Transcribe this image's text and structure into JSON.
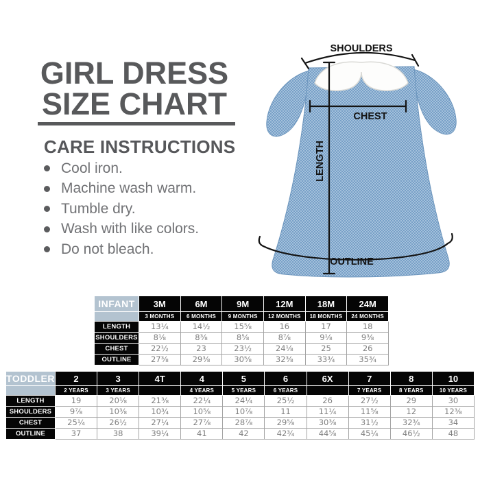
{
  "title": {
    "line1": "GIRL DRESS",
    "line2": "SIZE CHART"
  },
  "care": {
    "heading": "CARE INSTRUCTIONS",
    "items": [
      "Cool iron.",
      "Machine wash warm.",
      "Tumble dry.",
      "Wash with like colors.",
      "Do not bleach."
    ]
  },
  "diagram": {
    "shoulders_label": "SHOULDERS",
    "chest_label": "CHEST",
    "length_label": "LENGTH",
    "outline_label": "OUTLINE"
  },
  "colors": {
    "title_gray": "#58595b",
    "body_text_gray": "#717275",
    "table_header_bg": "#050505",
    "group_label_bg": "#b3c3d0",
    "value_text": "#7f7f7f",
    "dress_blue": "#7fa6cd"
  },
  "tables": {
    "infant": {
      "label": "INFANT",
      "columns": [
        {
          "size": "3M",
          "sub": "3 MONTHS"
        },
        {
          "size": "6M",
          "sub": "6 MONTHS"
        },
        {
          "size": "9M",
          "sub": "9 MONTHS"
        },
        {
          "size": "12M",
          "sub": "12 MONTHS"
        },
        {
          "size": "18M",
          "sub": "18 MONTHS"
        },
        {
          "size": "24M",
          "sub": "24 MONTHS"
        }
      ],
      "rows": [
        {
          "label": "LENGTH",
          "values": [
            "13¼",
            "14½",
            "15⅝",
            "16",
            "17",
            "18"
          ]
        },
        {
          "label": "SHOULDERS",
          "values": [
            "8⅛",
            "8⅜",
            "8⅝",
            "8⅞",
            "9⅛",
            "9⅜"
          ]
        },
        {
          "label": "CHEST",
          "values": [
            "22½",
            "23",
            "23½",
            "24⅛",
            "25",
            "26"
          ]
        },
        {
          "label": "OUTLINE",
          "values": [
            "27⅜",
            "29⅜",
            "30⅝",
            "32⅜",
            "33¾",
            "35¾"
          ]
        }
      ]
    },
    "toddler": {
      "label": "TODDLER",
      "columns": [
        {
          "size": "2",
          "sub": "2 YEARS"
        },
        {
          "size": "3",
          "sub": "3 YEARS"
        },
        {
          "size": "4T",
          "sub": ""
        },
        {
          "size": "4",
          "sub": "4 YEARS"
        },
        {
          "size": "5",
          "sub": "5 YEARS"
        },
        {
          "size": "6",
          "sub": "6 YEARS"
        },
        {
          "size": "6X",
          "sub": ""
        },
        {
          "size": "7",
          "sub": "7 YEARS"
        },
        {
          "size": "8",
          "sub": "8 YEARS"
        },
        {
          "size": "10",
          "sub": "10 YEARS"
        }
      ],
      "rows": [
        {
          "label": "LENGTH",
          "values": [
            "19",
            "20⅛",
            "21⅜",
            "22¼",
            "24¼",
            "25½",
            "26",
            "27½",
            "29",
            "30"
          ]
        },
        {
          "label": "SHOULDERS",
          "values": [
            "9⅞",
            "10⅜",
            "10¾",
            "10⅝",
            "10⅞",
            "11",
            "11¼",
            "11⅝",
            "12",
            "12⅜"
          ]
        },
        {
          "label": "CHEST",
          "values": [
            "25¼",
            "26½",
            "27¼",
            "27⅞",
            "28⅞",
            "29⅝",
            "30⅜",
            "31½",
            "32¾",
            "34"
          ]
        },
        {
          "label": "OUTLINE",
          "values": [
            "37",
            "38",
            "39¼",
            "41",
            "42",
            "42¾",
            "44⅝",
            "45¼",
            "46½",
            "48"
          ]
        }
      ]
    }
  }
}
